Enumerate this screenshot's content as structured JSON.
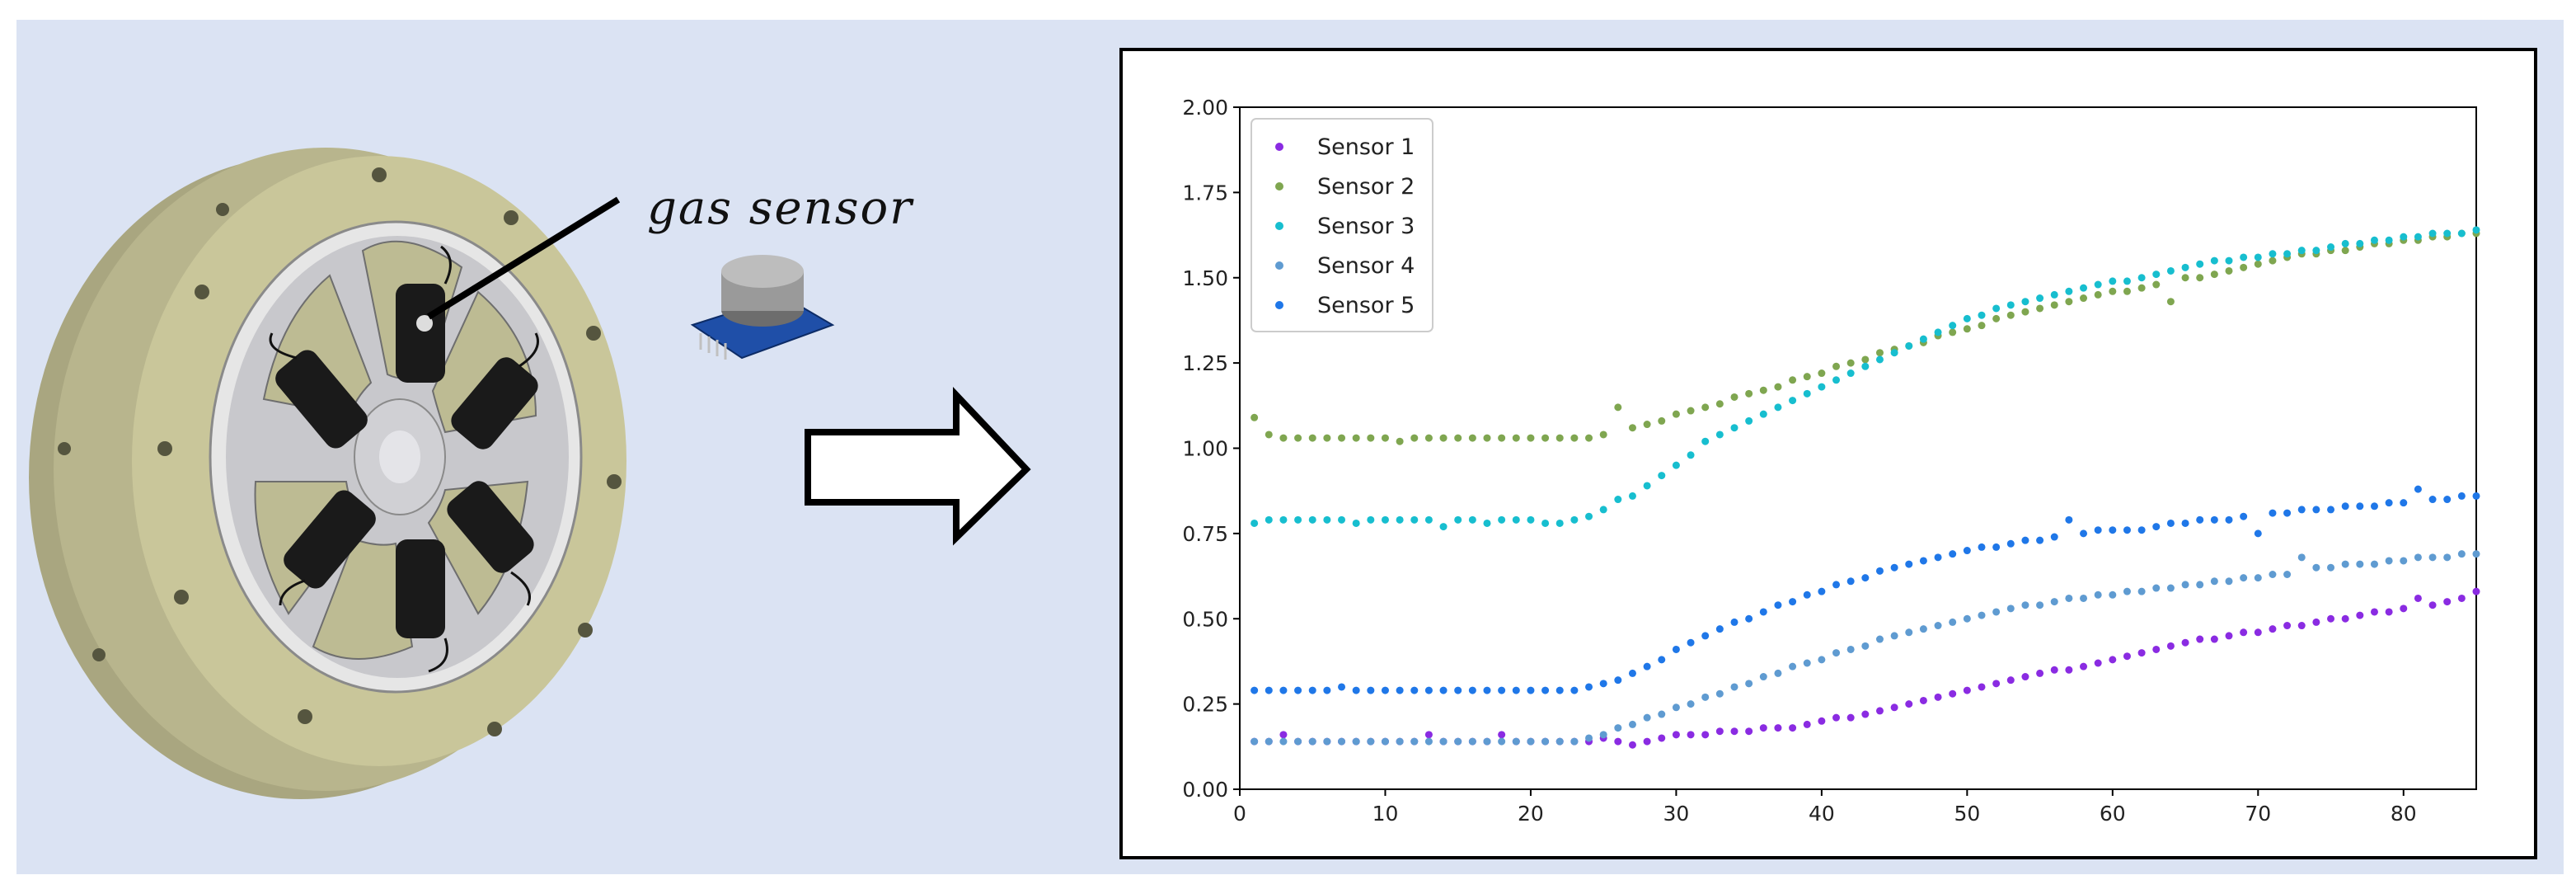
{
  "figure": {
    "annotation": "gas sensor"
  },
  "colors": {
    "panel_bg": "#dbe3f3",
    "ring": "#c9c69a",
    "sensor_body": "#1a1a1a"
  },
  "chart_data": {
    "type": "scatter",
    "title": "",
    "xlabel": "",
    "ylabel": "",
    "xlim": [
      0,
      85
    ],
    "ylim": [
      0,
      2
    ],
    "xticks": [
      "0",
      "10",
      "20",
      "30",
      "40",
      "50",
      "60",
      "70",
      "80"
    ],
    "yticks": [
      "0.00",
      "0.25",
      "0.50",
      "0.75",
      "1.00",
      "1.25",
      "1.50",
      "1.75",
      "2.00"
    ],
    "grid": false,
    "legend_position": "top-left",
    "x": [
      1,
      2,
      3,
      4,
      5,
      6,
      7,
      8,
      9,
      10,
      11,
      12,
      13,
      14,
      15,
      16,
      17,
      18,
      19,
      20,
      21,
      22,
      23,
      24,
      25,
      26,
      27,
      28,
      29,
      30,
      31,
      32,
      33,
      34,
      35,
      36,
      37,
      38,
      39,
      40,
      41,
      42,
      43,
      44,
      45,
      46,
      47,
      48,
      49,
      50,
      51,
      52,
      53,
      54,
      55,
      56,
      57,
      58,
      59,
      60,
      61,
      62,
      63,
      64,
      65,
      66,
      67,
      68,
      69,
      70,
      71,
      72,
      73,
      74,
      75,
      76,
      77,
      78,
      79,
      80,
      81,
      82,
      83,
      84,
      85
    ],
    "series": [
      {
        "name": "Sensor 1",
        "color": "#8a2be2",
        "values": [
          0.14,
          0.14,
          0.16,
          0.14,
          0.14,
          0.14,
          0.14,
          0.14,
          0.14,
          0.14,
          0.14,
          0.14,
          0.16,
          0.14,
          0.14,
          0.14,
          0.14,
          0.16,
          0.14,
          0.14,
          0.14,
          0.14,
          0.14,
          0.14,
          0.15,
          0.14,
          0.13,
          0.14,
          0.15,
          0.16,
          0.16,
          0.16,
          0.17,
          0.17,
          0.17,
          0.18,
          0.18,
          0.18,
          0.19,
          0.2,
          0.21,
          0.21,
          0.22,
          0.23,
          0.24,
          0.25,
          0.26,
          0.27,
          0.28,
          0.29,
          0.3,
          0.31,
          0.32,
          0.33,
          0.34,
          0.35,
          0.35,
          0.36,
          0.37,
          0.38,
          0.39,
          0.4,
          0.41,
          0.42,
          0.43,
          0.44,
          0.44,
          0.45,
          0.46,
          0.46,
          0.47,
          0.48,
          0.48,
          0.49,
          0.5,
          0.5,
          0.51,
          0.52,
          0.52,
          0.53,
          0.56,
          0.54,
          0.55,
          0.56,
          0.58
        ]
      },
      {
        "name": "Sensor 2",
        "color": "#7fa650",
        "values": [
          1.09,
          1.04,
          1.03,
          1.03,
          1.03,
          1.03,
          1.03,
          1.03,
          1.03,
          1.03,
          1.02,
          1.03,
          1.03,
          1.03,
          1.03,
          1.03,
          1.03,
          1.03,
          1.03,
          1.03,
          1.03,
          1.03,
          1.03,
          1.03,
          1.04,
          1.12,
          1.06,
          1.07,
          1.08,
          1.1,
          1.11,
          1.12,
          1.13,
          1.15,
          1.16,
          1.17,
          1.18,
          1.2,
          1.21,
          1.22,
          1.24,
          1.25,
          1.26,
          1.28,
          1.29,
          1.3,
          1.31,
          1.33,
          1.34,
          1.35,
          1.36,
          1.38,
          1.39,
          1.4,
          1.41,
          1.42,
          1.43,
          1.44,
          1.45,
          1.46,
          1.46,
          1.47,
          1.48,
          1.43,
          1.5,
          1.5,
          1.51,
          1.52,
          1.53,
          1.54,
          1.55,
          1.56,
          1.57,
          1.57,
          1.58,
          1.58,
          1.59,
          1.6,
          1.6,
          1.61,
          1.61,
          1.62,
          1.62,
          1.63,
          1.63
        ]
      },
      {
        "name": "Sensor 3",
        "color": "#17becf",
        "values": [
          0.78,
          0.79,
          0.79,
          0.79,
          0.79,
          0.79,
          0.79,
          0.78,
          0.79,
          0.79,
          0.79,
          0.79,
          0.79,
          0.77,
          0.79,
          0.79,
          0.78,
          0.79,
          0.79,
          0.79,
          0.78,
          0.78,
          0.79,
          0.8,
          0.82,
          0.85,
          0.86,
          0.89,
          0.92,
          0.95,
          0.98,
          1.02,
          1.04,
          1.06,
          1.08,
          1.1,
          1.12,
          1.14,
          1.16,
          1.18,
          1.2,
          1.22,
          1.24,
          1.26,
          1.28,
          1.3,
          1.32,
          1.34,
          1.36,
          1.38,
          1.39,
          1.41,
          1.42,
          1.43,
          1.44,
          1.45,
          1.46,
          1.47,
          1.48,
          1.49,
          1.49,
          1.5,
          1.51,
          1.52,
          1.53,
          1.54,
          1.55,
          1.55,
          1.56,
          1.56,
          1.57,
          1.57,
          1.58,
          1.58,
          1.59,
          1.6,
          1.6,
          1.61,
          1.61,
          1.62,
          1.62,
          1.63,
          1.63,
          1.63,
          1.64
        ]
      },
      {
        "name": "Sensor 4",
        "color": "#5f9bd1",
        "values": [
          0.14,
          0.14,
          0.14,
          0.14,
          0.14,
          0.14,
          0.14,
          0.14,
          0.14,
          0.14,
          0.14,
          0.14,
          0.14,
          0.14,
          0.14,
          0.14,
          0.14,
          0.14,
          0.14,
          0.14,
          0.14,
          0.14,
          0.14,
          0.15,
          0.16,
          0.18,
          0.19,
          0.21,
          0.22,
          0.24,
          0.25,
          0.27,
          0.28,
          0.3,
          0.31,
          0.33,
          0.34,
          0.36,
          0.37,
          0.38,
          0.4,
          0.41,
          0.42,
          0.44,
          0.45,
          0.46,
          0.47,
          0.48,
          0.49,
          0.5,
          0.51,
          0.52,
          0.53,
          0.54,
          0.54,
          0.55,
          0.56,
          0.56,
          0.57,
          0.57,
          0.58,
          0.58,
          0.59,
          0.59,
          0.6,
          0.6,
          0.61,
          0.61,
          0.62,
          0.62,
          0.63,
          0.63,
          0.68,
          0.65,
          0.65,
          0.66,
          0.66,
          0.66,
          0.67,
          0.67,
          0.68,
          0.68,
          0.68,
          0.69,
          0.69
        ]
      },
      {
        "name": "Sensor 5",
        "color": "#1f77e8",
        "values": [
          0.29,
          0.29,
          0.29,
          0.29,
          0.29,
          0.29,
          0.3,
          0.29,
          0.29,
          0.29,
          0.29,
          0.29,
          0.29,
          0.29,
          0.29,
          0.29,
          0.29,
          0.29,
          0.29,
          0.29,
          0.29,
          0.29,
          0.29,
          0.3,
          0.31,
          0.32,
          0.34,
          0.36,
          0.38,
          0.41,
          0.43,
          0.45,
          0.47,
          0.49,
          0.5,
          0.52,
          0.54,
          0.55,
          0.57,
          0.58,
          0.6,
          0.61,
          0.62,
          0.64,
          0.65,
          0.66,
          0.67,
          0.68,
          0.69,
          0.7,
          0.71,
          0.71,
          0.72,
          0.73,
          0.73,
          0.74,
          0.79,
          0.75,
          0.76,
          0.76,
          0.76,
          0.76,
          0.77,
          0.78,
          0.78,
          0.79,
          0.79,
          0.79,
          0.8,
          0.75,
          0.81,
          0.81,
          0.82,
          0.82,
          0.82,
          0.83,
          0.83,
          0.83,
          0.84,
          0.84,
          0.88,
          0.85,
          0.85,
          0.86,
          0.86
        ]
      }
    ]
  }
}
